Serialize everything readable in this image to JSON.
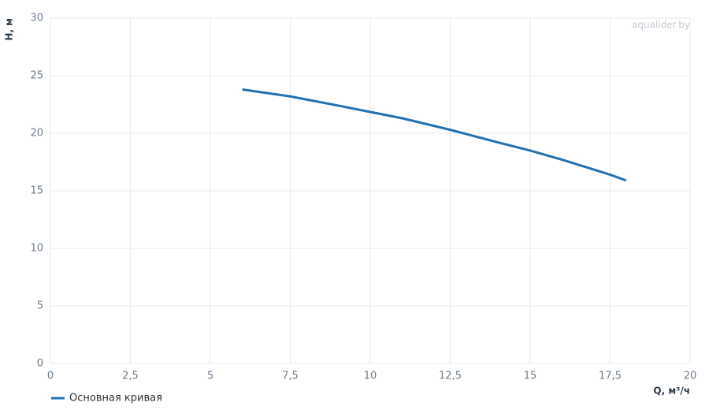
{
  "chart_data": {
    "type": "line",
    "watermark": "aqualider.by",
    "x_label": "Q, м³/ч",
    "y_label": "H, м",
    "x": [
      6,
      7.5,
      9,
      10,
      11,
      12.5,
      14,
      15,
      16,
      17.5,
      18
    ],
    "series": [
      {
        "name": "Основная кривая",
        "color": "#2271b1",
        "values": [
          23.8,
          23.2,
          22.4,
          21.85,
          21.3,
          20.3,
          19.2,
          18.5,
          17.7,
          16.4,
          15.9
        ]
      }
    ],
    "xlim": [
      0,
      20
    ],
    "xticks": [
      0,
      {
        "value": 2.5,
        "label": "2,5"
      },
      5,
      {
        "value": 7.5,
        "label": "7,5"
      },
      10,
      {
        "value": 12.5,
        "label": "12,5"
      },
      15,
      {
        "value": 17.5,
        "label": "17,5"
      },
      20
    ],
    "ylim": [
      0,
      30
    ],
    "yticks": [
      0,
      5,
      10,
      15,
      20,
      25,
      30
    ],
    "grid": true
  }
}
